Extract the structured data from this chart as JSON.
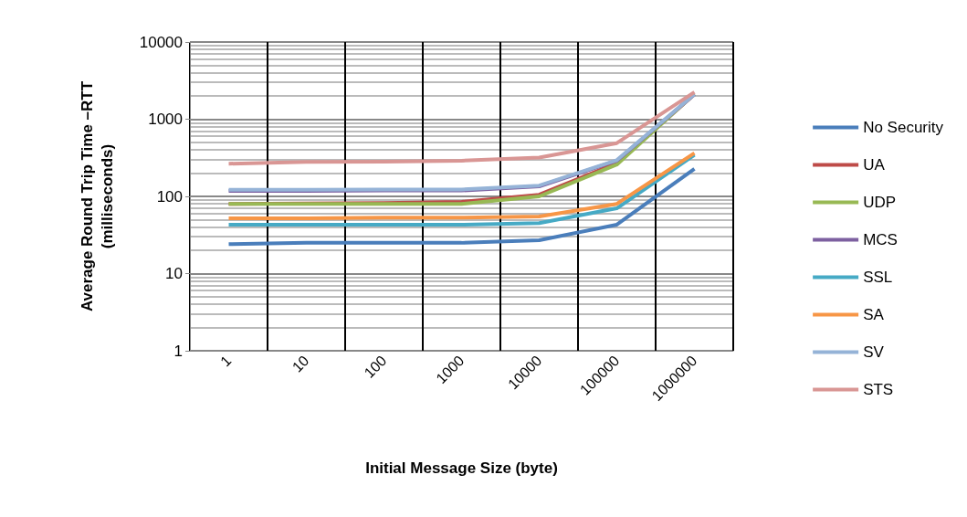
{
  "chart_data": {
    "type": "line",
    "xlabel": "Initial Message Size (byte)",
    "ylabel": "Average Round Trip Time –RTT (milliseconds)",
    "categories": [
      "1",
      "10",
      "100",
      "1000",
      "10000",
      "100000",
      "1000000"
    ],
    "log": "y",
    "ylim": [
      1,
      10000
    ],
    "yticks": [
      1,
      10,
      100,
      1000,
      10000
    ],
    "grid": true,
    "legend": "right",
    "marker": "none",
    "line_style": "solid",
    "series": [
      {
        "name": "No Security",
        "color": "#4a7ebb",
        "values": [
          24,
          25,
          25,
          25,
          27,
          43,
          227
        ]
      },
      {
        "name": "UA",
        "color": "#be4b48",
        "values": [
          80,
          81,
          82,
          85,
          105,
          270,
          2100
        ]
      },
      {
        "name": "UDP",
        "color": "#98b954",
        "values": [
          80,
          80,
          80,
          80,
          100,
          258,
          2130
        ]
      },
      {
        "name": "MCS",
        "color": "#7d60a0",
        "values": [
          118,
          118,
          119,
          119,
          135,
          290,
          2100
        ]
      },
      {
        "name": "SSL",
        "color": "#46aac5",
        "values": [
          43,
          43,
          43,
          43,
          45,
          70,
          345
        ]
      },
      {
        "name": "SA",
        "color": "#f79646",
        "values": [
          52,
          52,
          53,
          53,
          55,
          80,
          363
        ]
      },
      {
        "name": "SV",
        "color": "#95b3d7",
        "values": [
          122,
          122,
          123,
          123,
          138,
          295,
          2100
        ]
      },
      {
        "name": "STS",
        "color": "#d99694",
        "values": [
          265,
          280,
          282,
          290,
          318,
          490,
          2240
        ]
      }
    ]
  }
}
